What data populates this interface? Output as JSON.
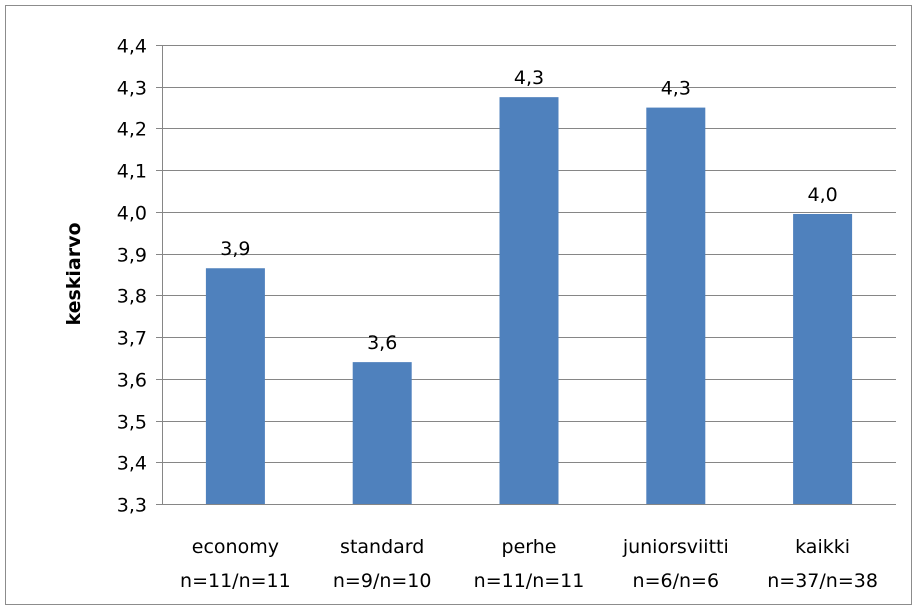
{
  "chart_data": {
    "type": "bar",
    "ylabel": "keskiarvo",
    "xlabel": "",
    "title": "",
    "ylim": [
      3.3,
      4.4
    ],
    "ytick_step": 0.1,
    "ytick_labels": [
      "3,3",
      "3,4",
      "3,5",
      "3,6",
      "3,7",
      "3,8",
      "3,9",
      "4,0",
      "4,1",
      "4,2",
      "4,3",
      "4,4"
    ],
    "grid": true,
    "legend": "none",
    "bar_color": "#4f81bd",
    "categories": [
      {
        "name": "economy",
        "n": "n=11/n=11"
      },
      {
        "name": "standard",
        "n": "n=9/n=10"
      },
      {
        "name": "perhe",
        "n": "n=11/n=11"
      },
      {
        "name": "juniorsviitti",
        "n": "n=6/n=6"
      },
      {
        "name": "kaikki",
        "n": "n=37/n=38"
      }
    ],
    "values": [
      3.865,
      3.64,
      4.275,
      4.25,
      3.995
    ],
    "data_labels": [
      "3,9",
      "3,6",
      "4,3",
      "4,3",
      "4,0"
    ]
  }
}
